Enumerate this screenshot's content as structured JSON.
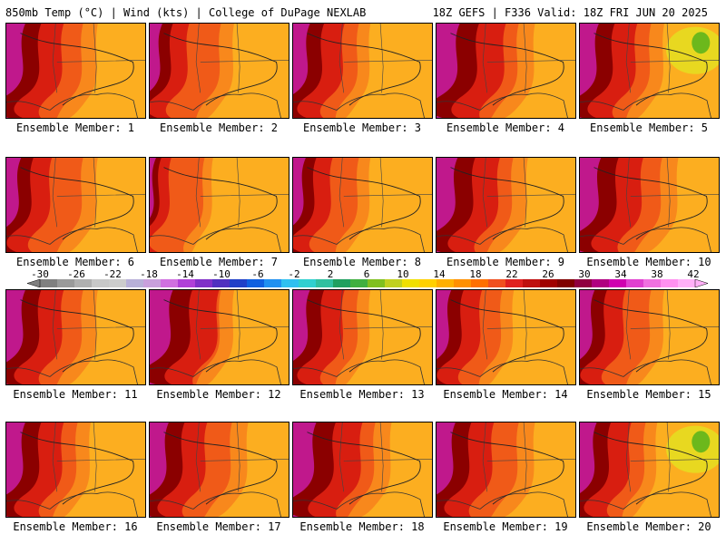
{
  "header": {
    "left": "850mb Temp (°C) | Wind (kts) | College of DuPage NEXLAB",
    "right": "18Z GEFS | F336 Valid: 18Z FRI JUN 20 2025"
  },
  "members": [
    {
      "label": "Ensemble Member: 1",
      "hot": 0.45,
      "warm": 0.65,
      "cool": false
    },
    {
      "label": "Ensemble Member: 2",
      "hot": 0.3,
      "warm": 0.6,
      "cool": false
    },
    {
      "label": "Ensemble Member: 3",
      "hot": 0.4,
      "warm": 0.55,
      "cool": false
    },
    {
      "label": "Ensemble Member: 4",
      "hot": 0.55,
      "warm": 0.7,
      "cool": false
    },
    {
      "label": "Ensemble Member: 5",
      "hot": 0.45,
      "warm": 0.6,
      "cool": true
    },
    {
      "label": "Ensemble Member: 6",
      "hot": 0.35,
      "warm": 0.65,
      "cool": false
    },
    {
      "label": "Ensemble Member: 7",
      "hot": 0.15,
      "warm": 0.45,
      "cool": false
    },
    {
      "label": "Ensemble Member: 8",
      "hot": 0.3,
      "warm": 0.55,
      "cool": false
    },
    {
      "label": "Ensemble Member: 9",
      "hot": 0.5,
      "warm": 0.65,
      "cool": false
    },
    {
      "label": "Ensemble Member: 10",
      "hot": 0.5,
      "warm": 0.7,
      "cool": false
    },
    {
      "label": "Ensemble Member: 11",
      "hot": 0.45,
      "warm": 0.65,
      "cool": false
    },
    {
      "label": "Ensemble Member: 12",
      "hot": 0.55,
      "warm": 0.6,
      "cool": false
    },
    {
      "label": "Ensemble Member: 13",
      "hot": 0.4,
      "warm": 0.55,
      "cool": false
    },
    {
      "label": "Ensemble Member: 14",
      "hot": 0.35,
      "warm": 0.55,
      "cool": false
    },
    {
      "label": "Ensemble Member: 15",
      "hot": 0.35,
      "warm": 0.6,
      "cool": false
    },
    {
      "label": "Ensemble Member: 16",
      "hot": 0.45,
      "warm": 0.6,
      "cool": false
    },
    {
      "label": "Ensemble Member: 17",
      "hot": 0.45,
      "warm": 0.7,
      "cool": false
    },
    {
      "label": "Ensemble Member: 18",
      "hot": 0.55,
      "warm": 0.7,
      "cool": false
    },
    {
      "label": "Ensemble Member: 19",
      "hot": 0.45,
      "warm": 0.7,
      "cool": false
    },
    {
      "label": "Ensemble Member: 20",
      "hot": 0.4,
      "warm": 0.55,
      "cool": true
    }
  ],
  "colorbar": {
    "ticks": [
      "-30",
      "-26",
      "-22",
      "-18",
      "-14",
      "-10",
      "-6",
      "-2",
      "2",
      "6",
      "10",
      "14",
      "18",
      "22",
      "26",
      "30",
      "34",
      "38",
      "42"
    ],
    "colors": [
      "#808080",
      "#9a9a9a",
      "#b0b0b0",
      "#c8c8c8",
      "#cccccc",
      "#b8b0d8",
      "#c9a0dc",
      "#d070e0",
      "#b040d8",
      "#8030c8",
      "#5030c0",
      "#2040c8",
      "#1060e0",
      "#2090f0",
      "#30c0f0",
      "#30d0d0",
      "#30c0a0",
      "#20a060",
      "#40b040",
      "#80c020",
      "#c0d020",
      "#f0e000",
      "#ffd000",
      "#ffb000",
      "#ff9000",
      "#ff7000",
      "#f05020",
      "#e02020",
      "#c01010",
      "#a00000",
      "#800000",
      "#900040",
      "#b00080",
      "#d000b0",
      "#e040d0",
      "#f070e0",
      "#ff90f0",
      "#ffb0f8"
    ],
    "palette": {
      "magenta": "#c0188c",
      "darkred": "#8b0000",
      "red": "#d81e10",
      "orangered": "#f05a18",
      "orange": "#f8881c",
      "lightorange": "#fcae20",
      "yellow": "#e8d820",
      "green": "#6cb81c"
    }
  }
}
